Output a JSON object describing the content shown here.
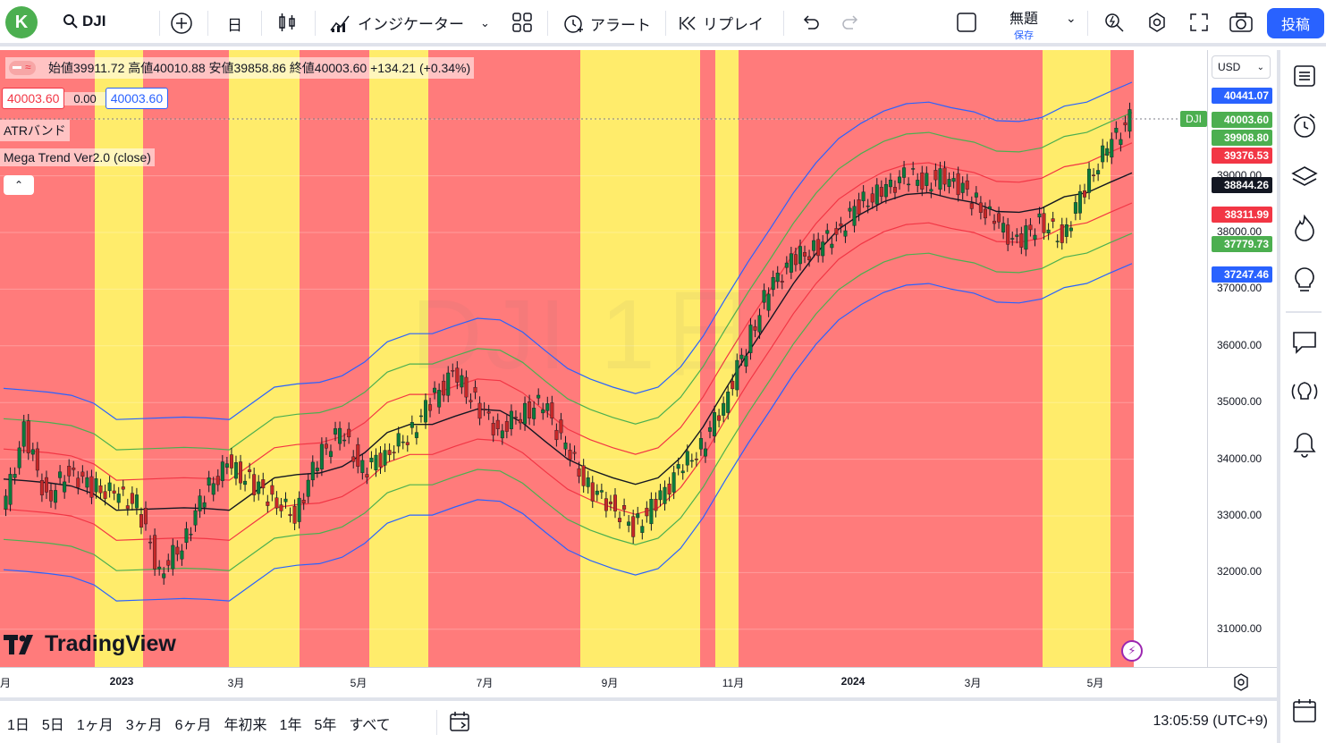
{
  "topbar": {
    "avatar_letter": "K",
    "symbol": "DJI",
    "interval": "日",
    "indicators_label": "インジケーター",
    "alert_label": "アラート",
    "replay_label": "リプレイ",
    "layout_name": "無題",
    "save_label": "保存",
    "post_label": "投稿"
  },
  "legend": {
    "ohlc": "始値39911.72 高値40010.88 安値39858.86 終値40003.60 +134.21 (+0.34%)",
    "bid": "40003.60",
    "spread": "0.00",
    "ask": "40003.60",
    "indicator1": "ATRバンド",
    "indicator2": "Mega Trend Ver2.0 (close)"
  },
  "watermark": "DJI 1日",
  "logo_text": "TradingView",
  "price_scale": {
    "currency": "USD",
    "ticks": [
      "39000.00",
      "38000.00",
      "37000.00",
      "36000.00",
      "35000.00",
      "34000.00",
      "33000.00",
      "32000.00",
      "31000.00"
    ],
    "labels": [
      {
        "text": "40441.07",
        "color": "#2962ff"
      },
      {
        "text": "40003.60",
        "color": "#4caf50"
      },
      {
        "text": "39908.80",
        "color": "#4caf50"
      },
      {
        "text": "39376.53",
        "color": "#f23645"
      },
      {
        "text": "38844.26",
        "color": "#131722"
      },
      {
        "text": "38311.99",
        "color": "#f23645"
      },
      {
        "text": "37779.73",
        "color": "#4caf50"
      },
      {
        "text": "37247.46",
        "color": "#2962ff"
      }
    ],
    "symbol_tag": "DJI"
  },
  "time_scale": [
    "月",
    "2023",
    "3月",
    "5月",
    "7月",
    "9月",
    "11月",
    "2024",
    "3月",
    "5月"
  ],
  "bottombar": {
    "ranges": [
      "1日",
      "5日",
      "1ヶ月",
      "3ヶ月",
      "6ヶ月",
      "年初来",
      "1年",
      "5年",
      "すべて"
    ],
    "clock": "13:05:59 (UTC+9)"
  },
  "chart_data": {
    "type": "candlestick",
    "symbol": "DJI",
    "interval": "1D",
    "ylim": [
      30500,
      41000
    ],
    "series": [
      {
        "name": "DJI close",
        "values": [
          33000,
          34500,
          33300,
          33800,
          33500,
          33400,
          33200,
          32000,
          32500,
          33400,
          33900,
          33600,
          33300,
          33000,
          34000,
          34500,
          33800,
          34100,
          34400,
          35000,
          35500,
          35000,
          34500,
          34800,
          35000,
          34200,
          33500,
          33200,
          32800,
          33200,
          33800,
          34200,
          35000,
          36000,
          37000,
          37500,
          37700,
          38000,
          38500,
          38700,
          39000,
          38900,
          39000,
          38600,
          38200,
          37800,
          38200,
          37900,
          38800,
          39500,
          40003.6
        ]
      }
    ],
    "bands": {
      "upper_blue": 40441.07,
      "upper_green": 39908.8,
      "upper_red": 39376.53,
      "middle_black": 38844.26,
      "lower_red": 38311.99,
      "lower_green": 37779.73,
      "lower_blue": 37247.46
    },
    "background_zones": "red / yellow trend zones"
  }
}
